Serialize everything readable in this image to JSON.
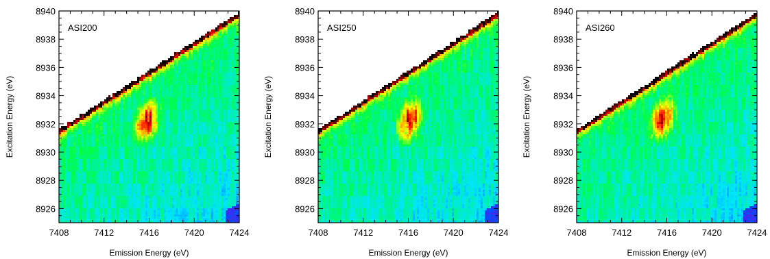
{
  "chart_data": [
    {
      "type": "heatmap",
      "panel_label": "ASI200",
      "xlabel": "Emission Energy (eV)",
      "ylabel": "Excitation Energy (eV)",
      "xlim": [
        7408,
        7424
      ],
      "ylim": [
        8925,
        8940
      ],
      "xticks": [
        7408,
        7412,
        7416,
        7420,
        7424
      ],
      "yticks": [
        8926,
        8928,
        8930,
        8932,
        8934,
        8936,
        8938,
        8940
      ],
      "peak_center": [
        7415.8,
        8932.2
      ],
      "colormap": [
        "#8a00d4",
        "#0050ff",
        "#00e5ff",
        "#00ff40",
        "#ffff00",
        "#ff0000",
        "#000000"
      ]
    },
    {
      "type": "heatmap",
      "panel_label": "ASI250",
      "xlabel": "Emission Energy (eV)",
      "ylabel": "Excitation Energy (eV)",
      "xlim": [
        7408,
        7424
      ],
      "ylim": [
        8925,
        8940
      ],
      "xticks": [
        7408,
        7412,
        7416,
        7420,
        7424
      ],
      "yticks": [
        8926,
        8928,
        8930,
        8932,
        8934,
        8936,
        8938,
        8940
      ],
      "peak_center": [
        7416.2,
        8932.3
      ],
      "colormap": [
        "#8a00d4",
        "#0050ff",
        "#00e5ff",
        "#00ff40",
        "#ffff00",
        "#ff0000",
        "#000000"
      ]
    },
    {
      "type": "heatmap",
      "panel_label": "ASI260",
      "xlabel": "Emission Energy (eV)",
      "ylabel": "Excitation Energy (eV)",
      "xlim": [
        7408,
        7424
      ],
      "ylim": [
        8925,
        8940
      ],
      "xticks": [
        7408,
        7412,
        7416,
        7420,
        7424
      ],
      "yticks": [
        8926,
        8928,
        8930,
        8932,
        8934,
        8936,
        8938,
        8940
      ],
      "peak_center": [
        7415.6,
        8932.4
      ],
      "colormap": [
        "#8a00d4",
        "#0050ff",
        "#00e5ff",
        "#00ff40",
        "#ffff00",
        "#ff0000",
        "#000000"
      ]
    }
  ]
}
